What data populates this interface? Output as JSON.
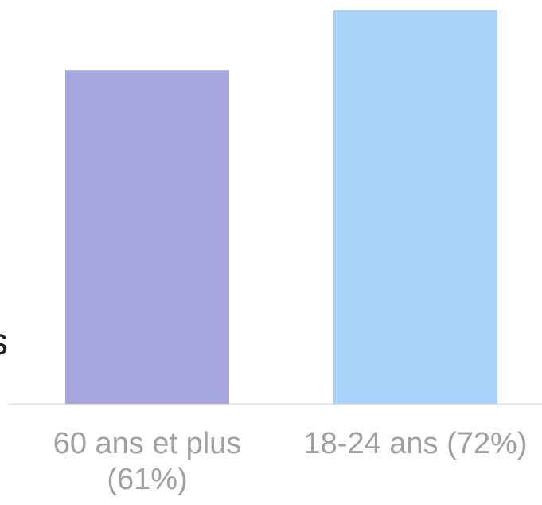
{
  "clipped_text": "s",
  "chart_data": {
    "type": "bar",
    "categories": [
      "60 ans et plus (61%)",
      "18-24 ans (72%)"
    ],
    "values": [
      61,
      72
    ],
    "colors": [
      "#a7a6df",
      "#a9d2fb"
    ]
  }
}
